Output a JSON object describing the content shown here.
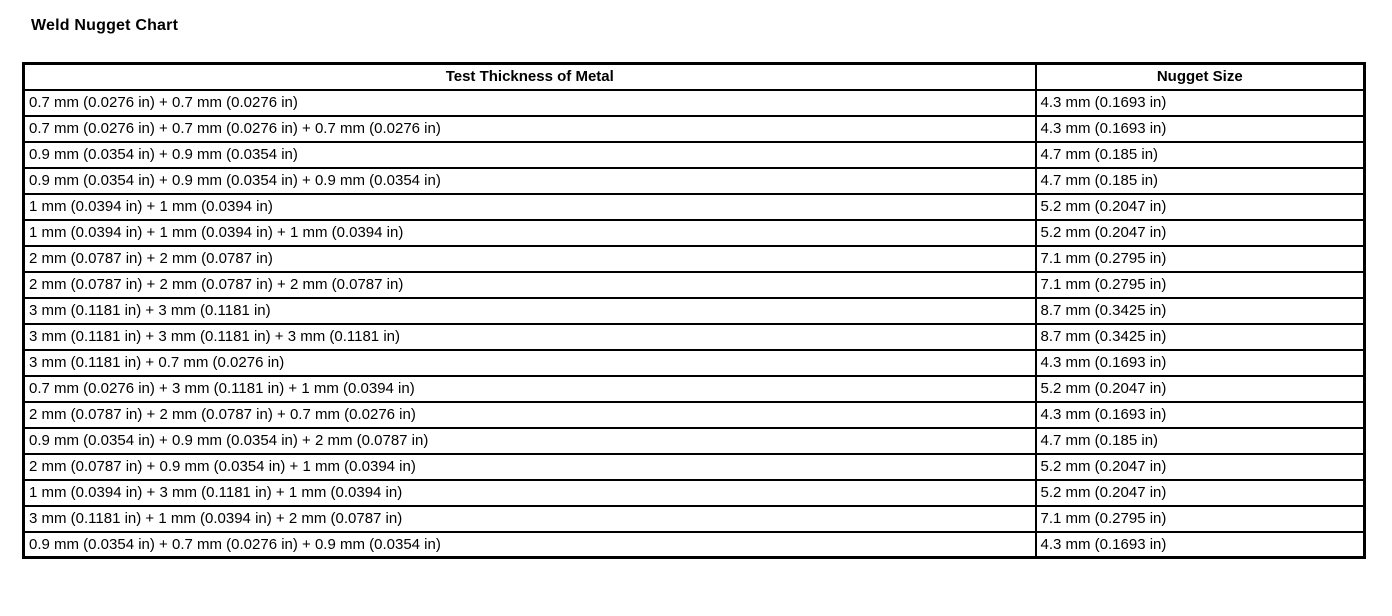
{
  "title": "Weld Nugget Chart",
  "table": {
    "columns": [
      "Test Thickness of Metal",
      "Nugget Size"
    ],
    "rows": [
      {
        "test_thickness": "0.7 mm (0.0276 in) + 0.7 mm (0.0276 in)",
        "nugget_size": "4.3 mm (0.1693 in)"
      },
      {
        "test_thickness": "0.7 mm (0.0276 in) + 0.7 mm (0.0276 in) + 0.7 mm (0.0276 in)",
        "nugget_size": "4.3 mm (0.1693 in)"
      },
      {
        "test_thickness": "0.9 mm (0.0354 in) + 0.9 mm (0.0354 in)",
        "nugget_size": "4.7 mm (0.185 in)"
      },
      {
        "test_thickness": "0.9 mm (0.0354 in) + 0.9 mm (0.0354 in) + 0.9 mm (0.0354 in)",
        "nugget_size": "4.7 mm (0.185 in)"
      },
      {
        "test_thickness": "1 mm (0.0394 in) + 1 mm (0.0394 in)",
        "nugget_size": "5.2 mm (0.2047 in)"
      },
      {
        "test_thickness": "1 mm (0.0394 in) + 1 mm (0.0394 in) + 1 mm (0.0394 in)",
        "nugget_size": "5.2 mm (0.2047 in)"
      },
      {
        "test_thickness": "2 mm (0.0787 in) + 2 mm (0.0787 in)",
        "nugget_size": "7.1 mm (0.2795 in)"
      },
      {
        "test_thickness": "2 mm (0.0787 in) + 2 mm (0.0787 in) + 2 mm (0.0787 in)",
        "nugget_size": "7.1 mm (0.2795 in)"
      },
      {
        "test_thickness": "3 mm (0.1181 in) + 3 mm (0.1181 in)",
        "nugget_size": "8.7 mm (0.3425 in)"
      },
      {
        "test_thickness": "3 mm (0.1181 in) + 3 mm (0.1181 in) + 3 mm (0.1181 in)",
        "nugget_size": "8.7 mm (0.3425 in)"
      },
      {
        "test_thickness": "3 mm (0.1181 in) + 0.7 mm (0.0276 in)",
        "nugget_size": "4.3 mm (0.1693 in)"
      },
      {
        "test_thickness": "0.7 mm (0.0276 in) + 3 mm (0.1181 in) + 1 mm (0.0394 in)",
        "nugget_size": "5.2 mm (0.2047 in)"
      },
      {
        "test_thickness": "2 mm (0.0787 in) + 2 mm (0.0787 in) + 0.7 mm (0.0276 in)",
        "nugget_size": "4.3 mm (0.1693 in)"
      },
      {
        "test_thickness": "0.9 mm (0.0354 in) + 0.9 mm (0.0354 in) + 2 mm (0.0787 in)",
        "nugget_size": "4.7 mm (0.185 in)"
      },
      {
        "test_thickness": "2 mm (0.0787 in) + 0.9 mm (0.0354 in) + 1 mm (0.0394 in)",
        "nugget_size": "5.2 mm (0.2047 in)"
      },
      {
        "test_thickness": "1 mm (0.0394 in) + 3 mm (0.1181 in) + 1 mm (0.0394 in)",
        "nugget_size": "5.2 mm (0.2047 in)"
      },
      {
        "test_thickness": "3 mm (0.1181 in) + 1 mm (0.0394 in) + 2 mm (0.0787 in)",
        "nugget_size": "7.1 mm (0.2795 in)"
      },
      {
        "test_thickness": "0.9 mm (0.0354 in) + 0.7 mm (0.0276 in) + 0.9 mm (0.0354 in)",
        "nugget_size": "4.3 mm (0.1693 in)"
      }
    ],
    "border_color": "#000000"
  }
}
